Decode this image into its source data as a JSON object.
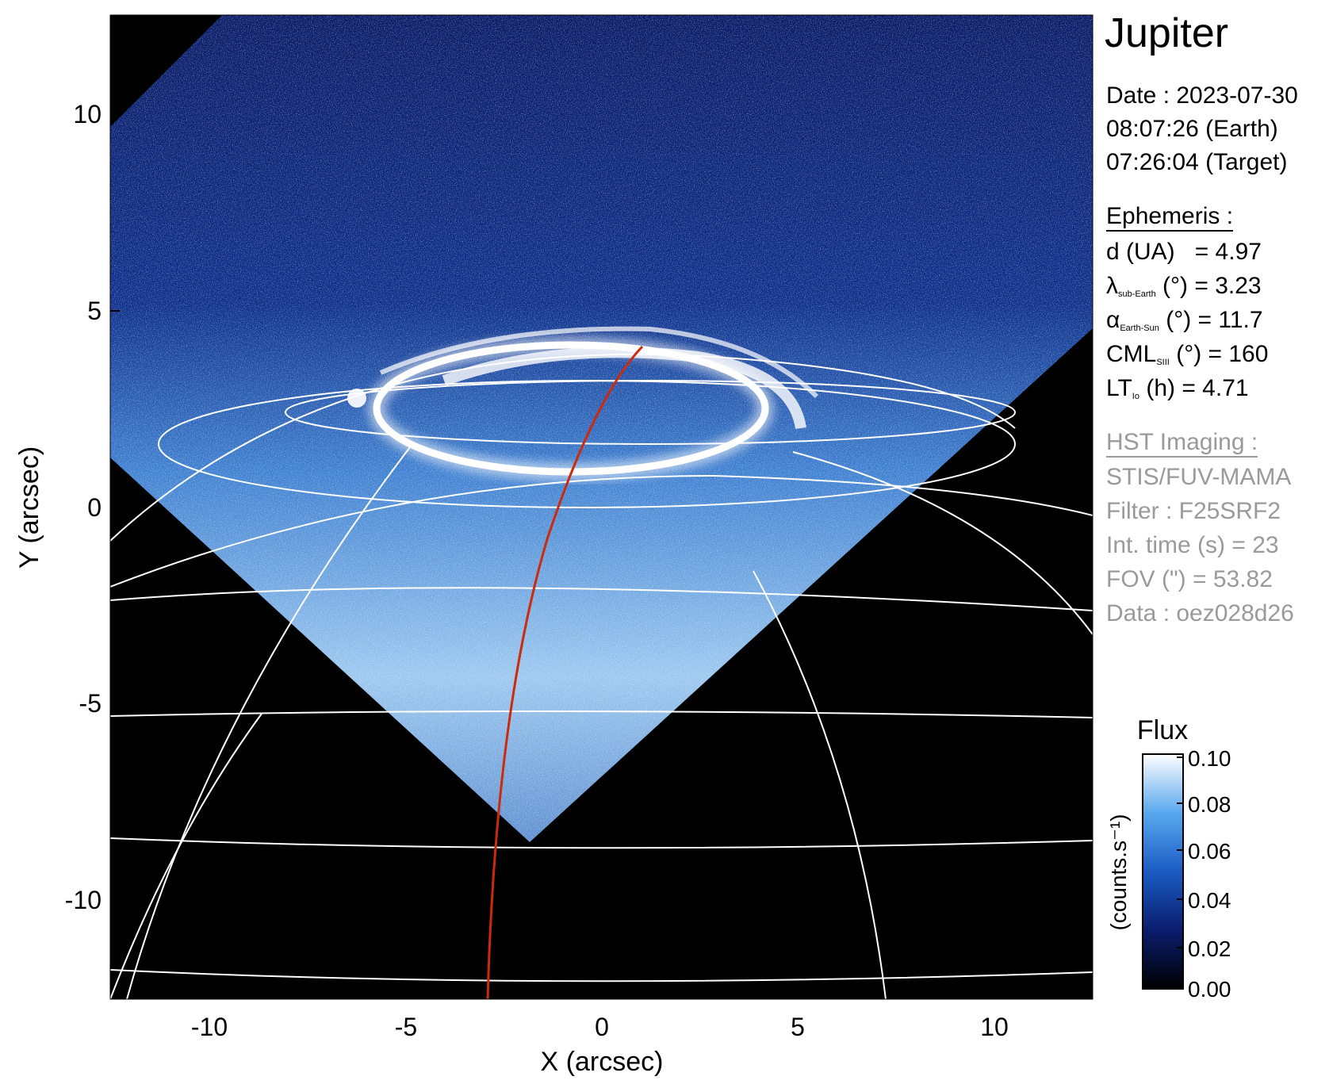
{
  "figure": {
    "title": "Jupiter",
    "date_line": "Date : 2023-07-30",
    "earth_time": "08:07:26 (Earth)",
    "target_time": "07:26:04 (Target)",
    "ephemeris_heading": "Ephemeris :",
    "ephemeris": {
      "d_label": "d (UA)",
      "d_value": "= 4.97",
      "lambda_symbol": "λ",
      "lambda_sub": "sub-Earth",
      "lambda_value": "(°) = 3.23",
      "alpha_symbol": "α",
      "alpha_sub": "Earth-Sun",
      "alpha_value": "(°) = 11.7",
      "cml_symbol": "CML",
      "cml_sub": "SIII",
      "cml_value": "(°) = 160",
      "lt_symbol": "LT",
      "lt_sub": "Io",
      "lt_value": "(h) = 4.71"
    },
    "hst_heading": "HST Imaging :",
    "hst": {
      "instrument": "STIS/FUV-MAMA",
      "filter": "Filter : F25SRF2",
      "int_time": "Int. time (s) = 23",
      "fov": "FOV (\") = 53.82",
      "data": "Data : oez028d26"
    }
  },
  "axes": {
    "xlabel": "X (arcsec)",
    "ylabel": "Y (arcsec)",
    "xticks": [
      "-10",
      "-5",
      "0",
      "5",
      "10"
    ],
    "yticks": [
      "10",
      "5",
      "0",
      "-5",
      "-10"
    ]
  },
  "colorbar": {
    "title": "Flux",
    "units": "(counts.s⁻¹)",
    "ticks": [
      "0.10",
      "0.08",
      "0.06",
      "0.04",
      "0.02",
      "0.00"
    ]
  },
  "colors": {
    "background": "#000000",
    "emission_low": "#0a1a6e",
    "emission_high": "#ffffff",
    "ref_meridian": "#cc2a0a",
    "grid": "#ffffff"
  }
}
